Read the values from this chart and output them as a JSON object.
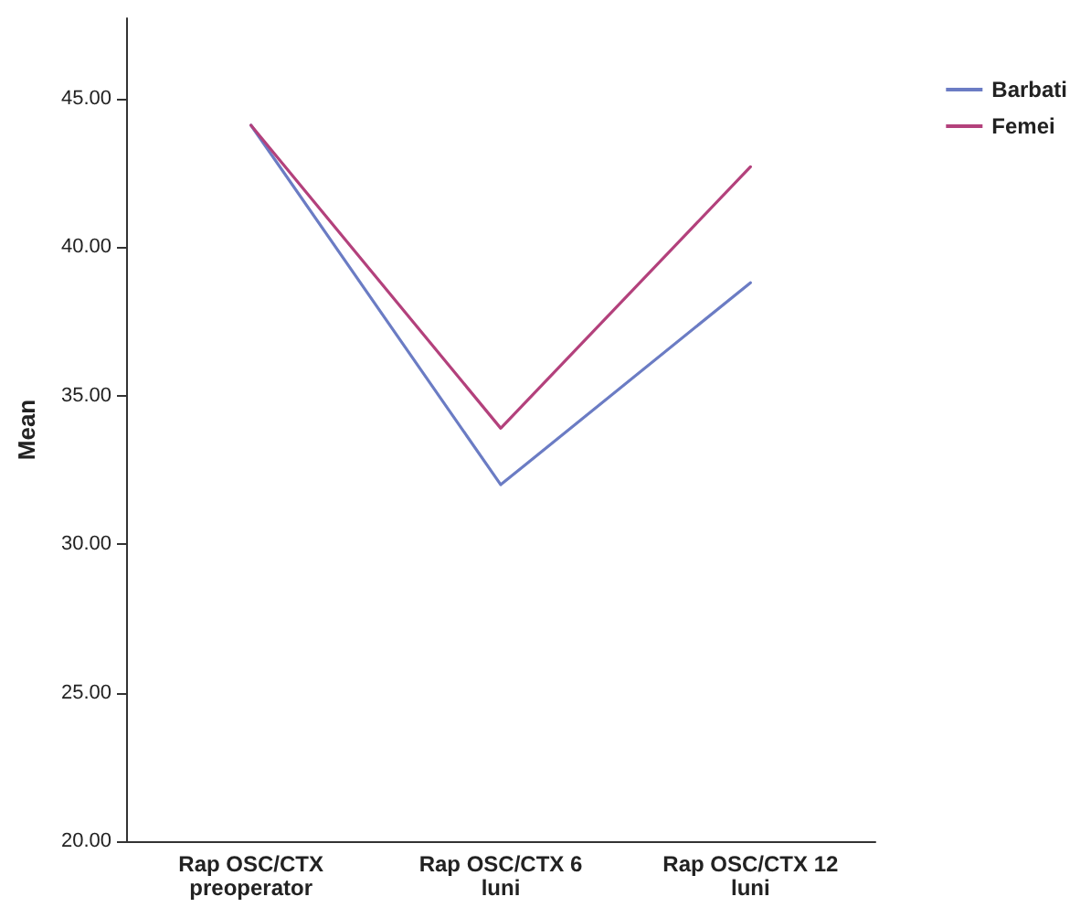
{
  "chart_data": {
    "type": "line",
    "ylabel": "Mean",
    "categories": [
      "Rap OSC/CTX\npreoperator",
      "Rap OSC/CTX 6\nluni",
      "Rap OSC/CTX 12\nluni"
    ],
    "series": [
      {
        "name": "Barbati",
        "color": "#6b7cc4",
        "values": [
          44.1,
          32.0,
          38.8
        ]
      },
      {
        "name": "Femei",
        "color": "#b3417c",
        "values": [
          44.1,
          33.9,
          42.7
        ]
      }
    ],
    "ylim": [
      20,
      47.7
    ],
    "yticks": [
      {
        "value": 20,
        "label": "20.00"
      },
      {
        "value": 25,
        "label": "25.00"
      },
      {
        "value": 30,
        "label": "30.00"
      },
      {
        "value": 35,
        "label": "35.00"
      },
      {
        "value": 40,
        "label": "40.00"
      },
      {
        "value": 45,
        "label": "45.00"
      }
    ],
    "grid": false,
    "legend": "top right",
    "marker": "none",
    "line_style": "solid"
  }
}
